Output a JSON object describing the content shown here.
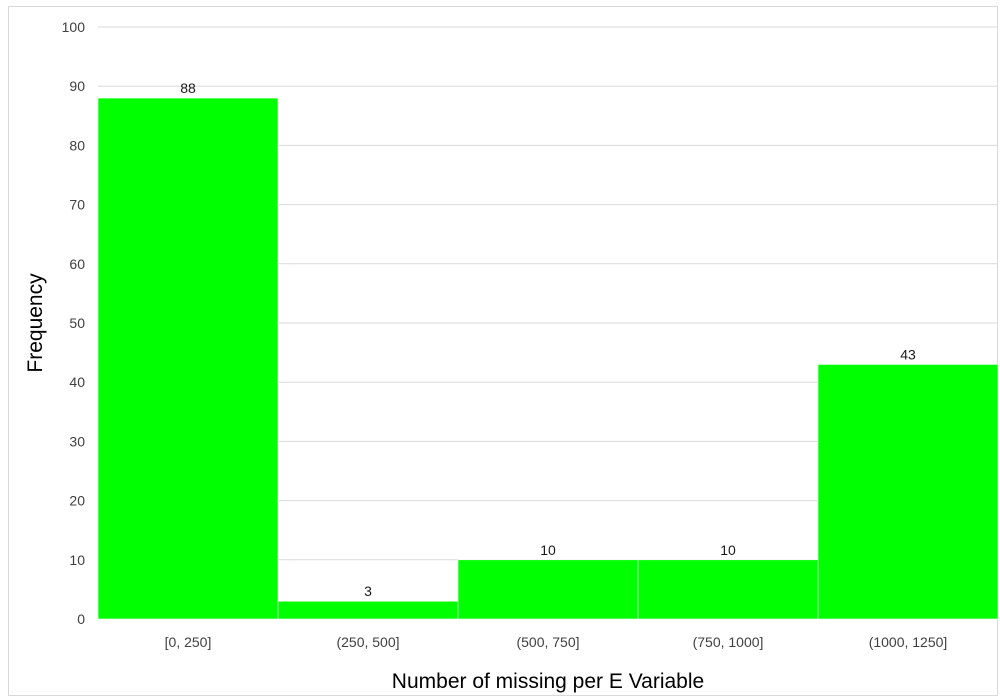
{
  "chart_data": {
    "type": "bar",
    "categories": [
      "[0, 250]",
      "(250, 500]",
      "(500, 750]",
      "(750, 1000]",
      "(1000, 1250]"
    ],
    "values": [
      88,
      3,
      10,
      10,
      43
    ],
    "xlabel": "Number of missing per E Variable",
    "ylabel": "Frequency",
    "ylim": [
      0,
      100
    ],
    "yticks": [
      0,
      10,
      20,
      30,
      40,
      50,
      60,
      70,
      80,
      90,
      100
    ],
    "grid": true,
    "legend": "none",
    "bar_color": "#00ff00",
    "grid_color": "#d9d9d9",
    "data_labels": true
  }
}
